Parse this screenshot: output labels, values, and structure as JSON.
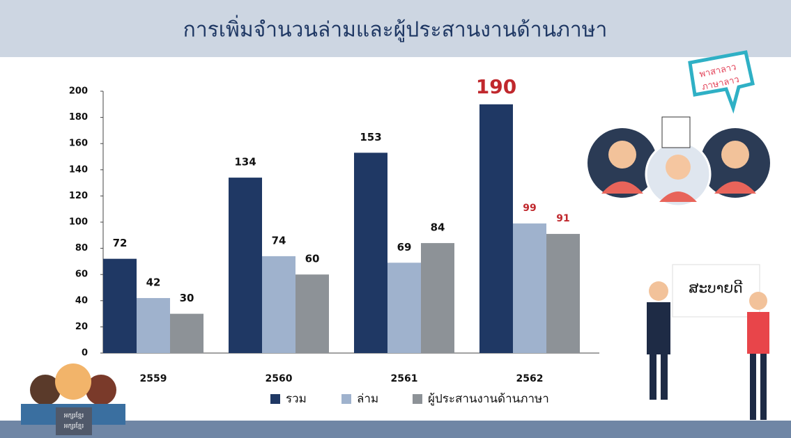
{
  "chart_data": {
    "type": "bar",
    "title": "การเพิ่มจำนวนล่ามและผู้ประสานงานด้านภาษา",
    "categories": [
      "2559",
      "2560",
      "2561",
      "2562"
    ],
    "series": [
      {
        "name": "รวม",
        "color": "#1f3864",
        "values": [
          72,
          134,
          153,
          190
        ]
      },
      {
        "name": "ล่าม",
        "color": "#9fb2cd",
        "values": [
          42,
          74,
          69,
          99
        ]
      },
      {
        "name": "ผู้ประสานงานด้านภาษา",
        "color": "#8d9297",
        "values": [
          30,
          60,
          84,
          91
        ]
      }
    ],
    "ylim": [
      0,
      200
    ],
    "yticks": [
      0,
      20,
      40,
      60,
      80,
      100,
      120,
      140,
      160,
      180,
      200
    ],
    "grid": false
  },
  "illustrations": {
    "bubble": [
      "พาสาลาว",
      "ภาษาลาว"
    ],
    "board": "ສະບາຍດີ",
    "laptop": [
      "អក្សរខ្មែរ",
      "អក្សរខ្មែរ"
    ]
  }
}
